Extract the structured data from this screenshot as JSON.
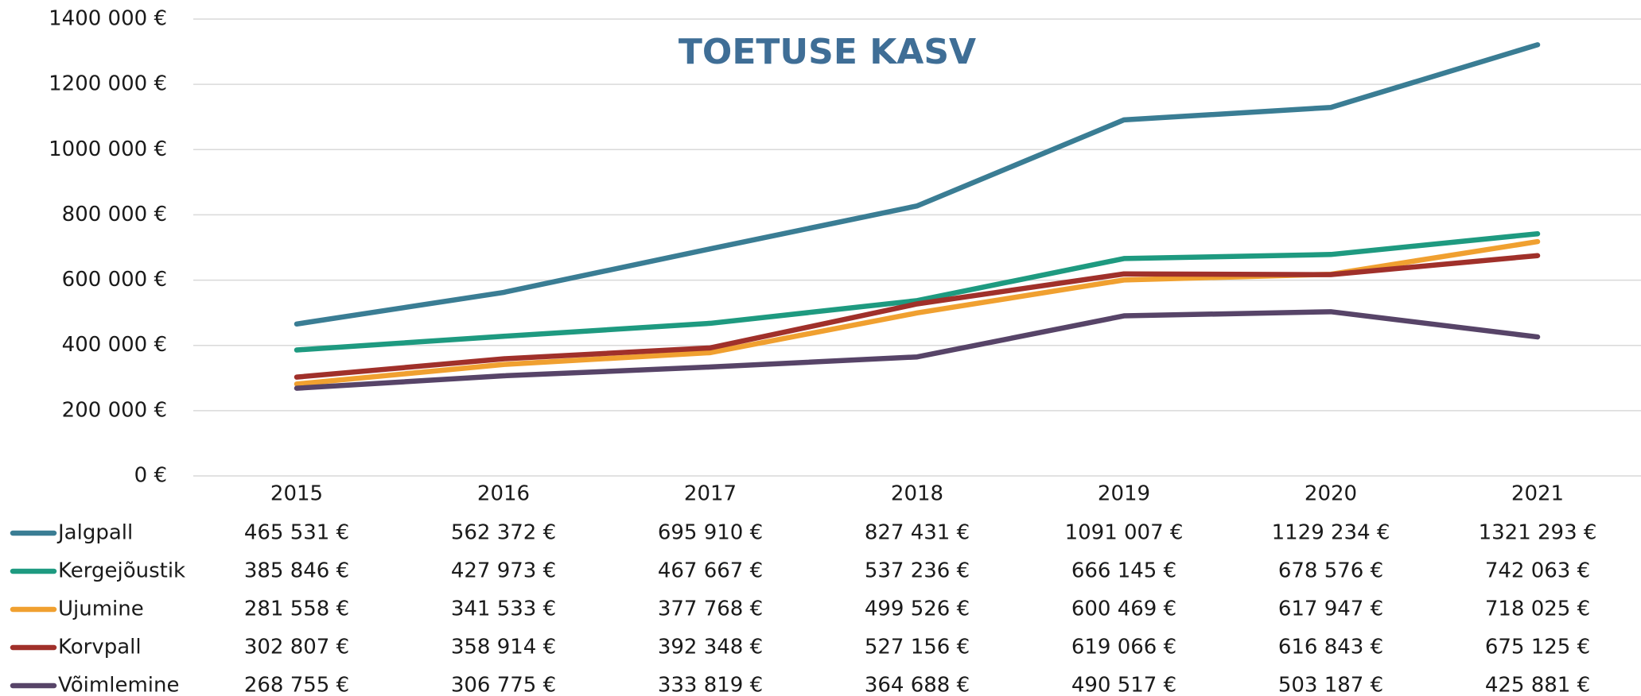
{
  "chart_data": {
    "type": "line",
    "title": "TOETUSE KASV",
    "categories": [
      "2015",
      "2016",
      "2017",
      "2018",
      "2019",
      "2020",
      "2021"
    ],
    "ylim": [
      0,
      1400000
    ],
    "yticks": [
      {
        "value": 0,
        "label": "0 €"
      },
      {
        "value": 200000,
        "label": "200 000 €"
      },
      {
        "value": 400000,
        "label": "400 000 €"
      },
      {
        "value": 600000,
        "label": "600 000 €"
      },
      {
        "value": 800000,
        "label": "800 000 €"
      },
      {
        "value": 1000000,
        "label": "1000 000 €"
      },
      {
        "value": 1200000,
        "label": "1200 000 €"
      },
      {
        "value": 1400000,
        "label": "1400 000 €"
      }
    ],
    "grid": true,
    "series": [
      {
        "name": "Jalgpall",
        "color": "#3a7d94",
        "values": [
          465531,
          562372,
          695910,
          827431,
          1091007,
          1129234,
          1321293
        ],
        "value_labels": [
          "465 531 €",
          "562 372 €",
          "695 910 €",
          "827 431 €",
          "1091 007 €",
          "1129 234 €",
          "1321 293 €"
        ]
      },
      {
        "name": "Kergejõustik",
        "color": "#1e9a80",
        "values": [
          385846,
          427973,
          467667,
          537236,
          666145,
          678576,
          742063
        ],
        "value_labels": [
          "385 846 €",
          "427 973 €",
          "467 667 €",
          "537 236 €",
          "666 145 €",
          "678 576 €",
          "742 063 €"
        ]
      },
      {
        "name": "Ujumine",
        "color": "#f0a030",
        "values": [
          281558,
          341533,
          377768,
          499526,
          600469,
          617947,
          718025
        ],
        "value_labels": [
          "281 558 €",
          "341 533 €",
          "377 768 €",
          "499 526 €",
          "600 469 €",
          "617 947 €",
          "718 025 €"
        ]
      },
      {
        "name": "Korvpall",
        "color": "#a0302a",
        "values": [
          302807,
          358914,
          392348,
          527156,
          619066,
          616843,
          675125
        ],
        "value_labels": [
          "302 807 €",
          "358 914 €",
          "392 348 €",
          "527 156 €",
          "619 066 €",
          "616 843 €",
          "675 125 €"
        ]
      },
      {
        "name": "Võimlemine",
        "color": "#574468",
        "values": [
          268755,
          306775,
          333819,
          364688,
          490517,
          503187,
          425881
        ],
        "value_labels": [
          "268 755 €",
          "306 775 €",
          "333 819 €",
          "364 688 €",
          "490 517 €",
          "503 187 €",
          "425 881 €"
        ]
      }
    ]
  }
}
